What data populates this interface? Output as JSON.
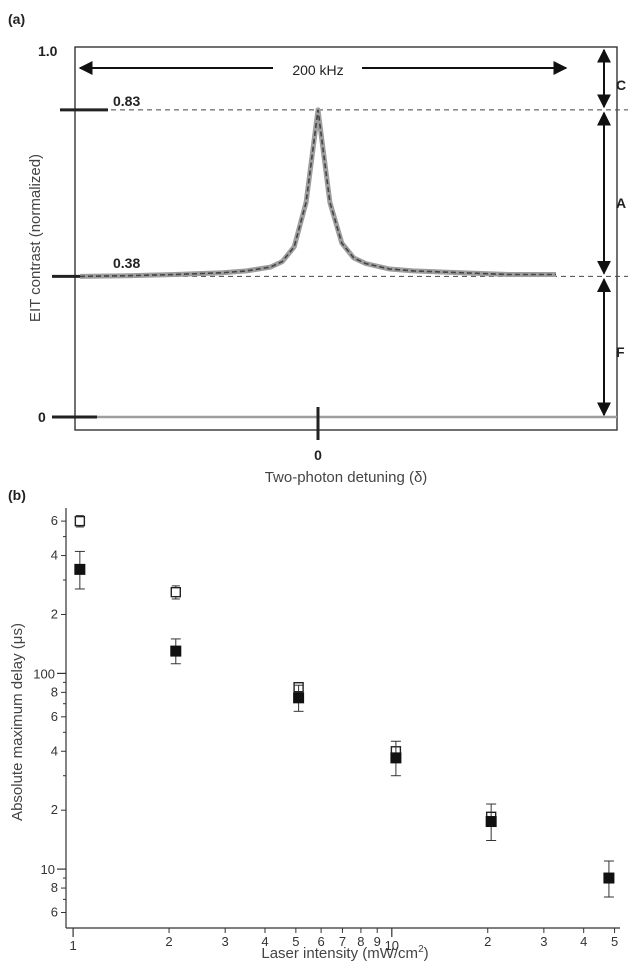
{
  "colors": {
    "axis": "#333333",
    "curve": "#9e9e9e",
    "dash": "#444444",
    "marker": "#111111"
  },
  "panel_a": {
    "label": "(a)",
    "ylabel": "EIT contrast (normalized)",
    "xlabel": "Two-photon detuning (δ)",
    "xtick_label": "0",
    "y_labels": {
      "top": "1.0",
      "zero": "0"
    },
    "levels": {
      "peak_label": "0.83",
      "baseline_label": "0.38"
    },
    "span_label": "200 kHz",
    "bracket_labels": [
      "C",
      "A",
      "F"
    ]
  },
  "panel_b": {
    "label": "(b)",
    "ylabel": "Absolute maximum delay (μs)",
    "xlabel": "Laser intensity (mW/cm",
    "xlabel_sup": "2",
    "xlabel_tail": ")",
    "x_major_labels": [
      "1",
      "10"
    ],
    "x_minor_labels": [
      "2",
      "3",
      "4",
      "5",
      "6",
      "7",
      "8",
      "9",
      "2",
      "3",
      "4",
      "5"
    ],
    "y_major_labels": [
      "10",
      "100"
    ],
    "y_minor_labels": [
      "6",
      "8",
      "2",
      "4",
      "6",
      "8",
      "2",
      "4",
      "6"
    ]
  },
  "chart_data": [
    {
      "type": "line",
      "panel": "(a)",
      "ylabel": "EIT contrast (normalized)",
      "xlabel": "Two-photon detuning (δ)",
      "ylim": [
        0,
        1.0
      ],
      "series": [
        {
          "x": [
            -1.0,
            -0.8,
            -0.6,
            -0.4,
            -0.3,
            -0.2,
            -0.15,
            -0.1,
            -0.05,
            0.0,
            0.05,
            0.1,
            0.15,
            0.2,
            0.3,
            0.4,
            0.6,
            0.8,
            1.0
          ],
          "y": [
            0.38,
            0.382,
            0.385,
            0.39,
            0.395,
            0.405,
            0.42,
            0.46,
            0.58,
            0.83,
            0.58,
            0.47,
            0.43,
            0.415,
            0.4,
            0.395,
            0.39,
            0.385,
            0.385
          ]
        }
      ],
      "annotations": [
        "0.83",
        "0.38",
        "200 kHz",
        "C",
        "A",
        "F"
      ]
    },
    {
      "type": "scatter",
      "panel": "(b)",
      "xlabel": "Laser intensity (mW/cm2)",
      "ylabel": "Absolute maximum delay (μs)",
      "xscale": "log",
      "yscale": "log",
      "xlim": [
        0.95,
        52
      ],
      "ylim": [
        5,
        700
      ],
      "series": [
        {
          "marker": "filled-square",
          "x": [
            1.05,
            2.1,
            5.1,
            10.3,
            20.5,
            48
          ],
          "y": [
            340,
            130,
            75,
            37,
            17.5,
            9
          ],
          "err": [
            [
              270,
              420
            ],
            [
              112,
              150
            ],
            [
              64,
              87
            ],
            [
              30,
              45
            ],
            [
              14,
              21.5
            ],
            [
              7.2,
              11
            ]
          ]
        },
        {
          "marker": "open-square",
          "x": [
            1.05,
            2.1,
            5.1,
            10.3,
            20.5
          ],
          "y": [
            600,
            260,
            85,
            40,
            18.5
          ],
          "err": [
            [
              560,
              640
            ],
            [
              240,
              280
            ],
            [
              0,
              0
            ],
            [
              0,
              0
            ],
            [
              0,
              0
            ]
          ]
        }
      ]
    }
  ]
}
